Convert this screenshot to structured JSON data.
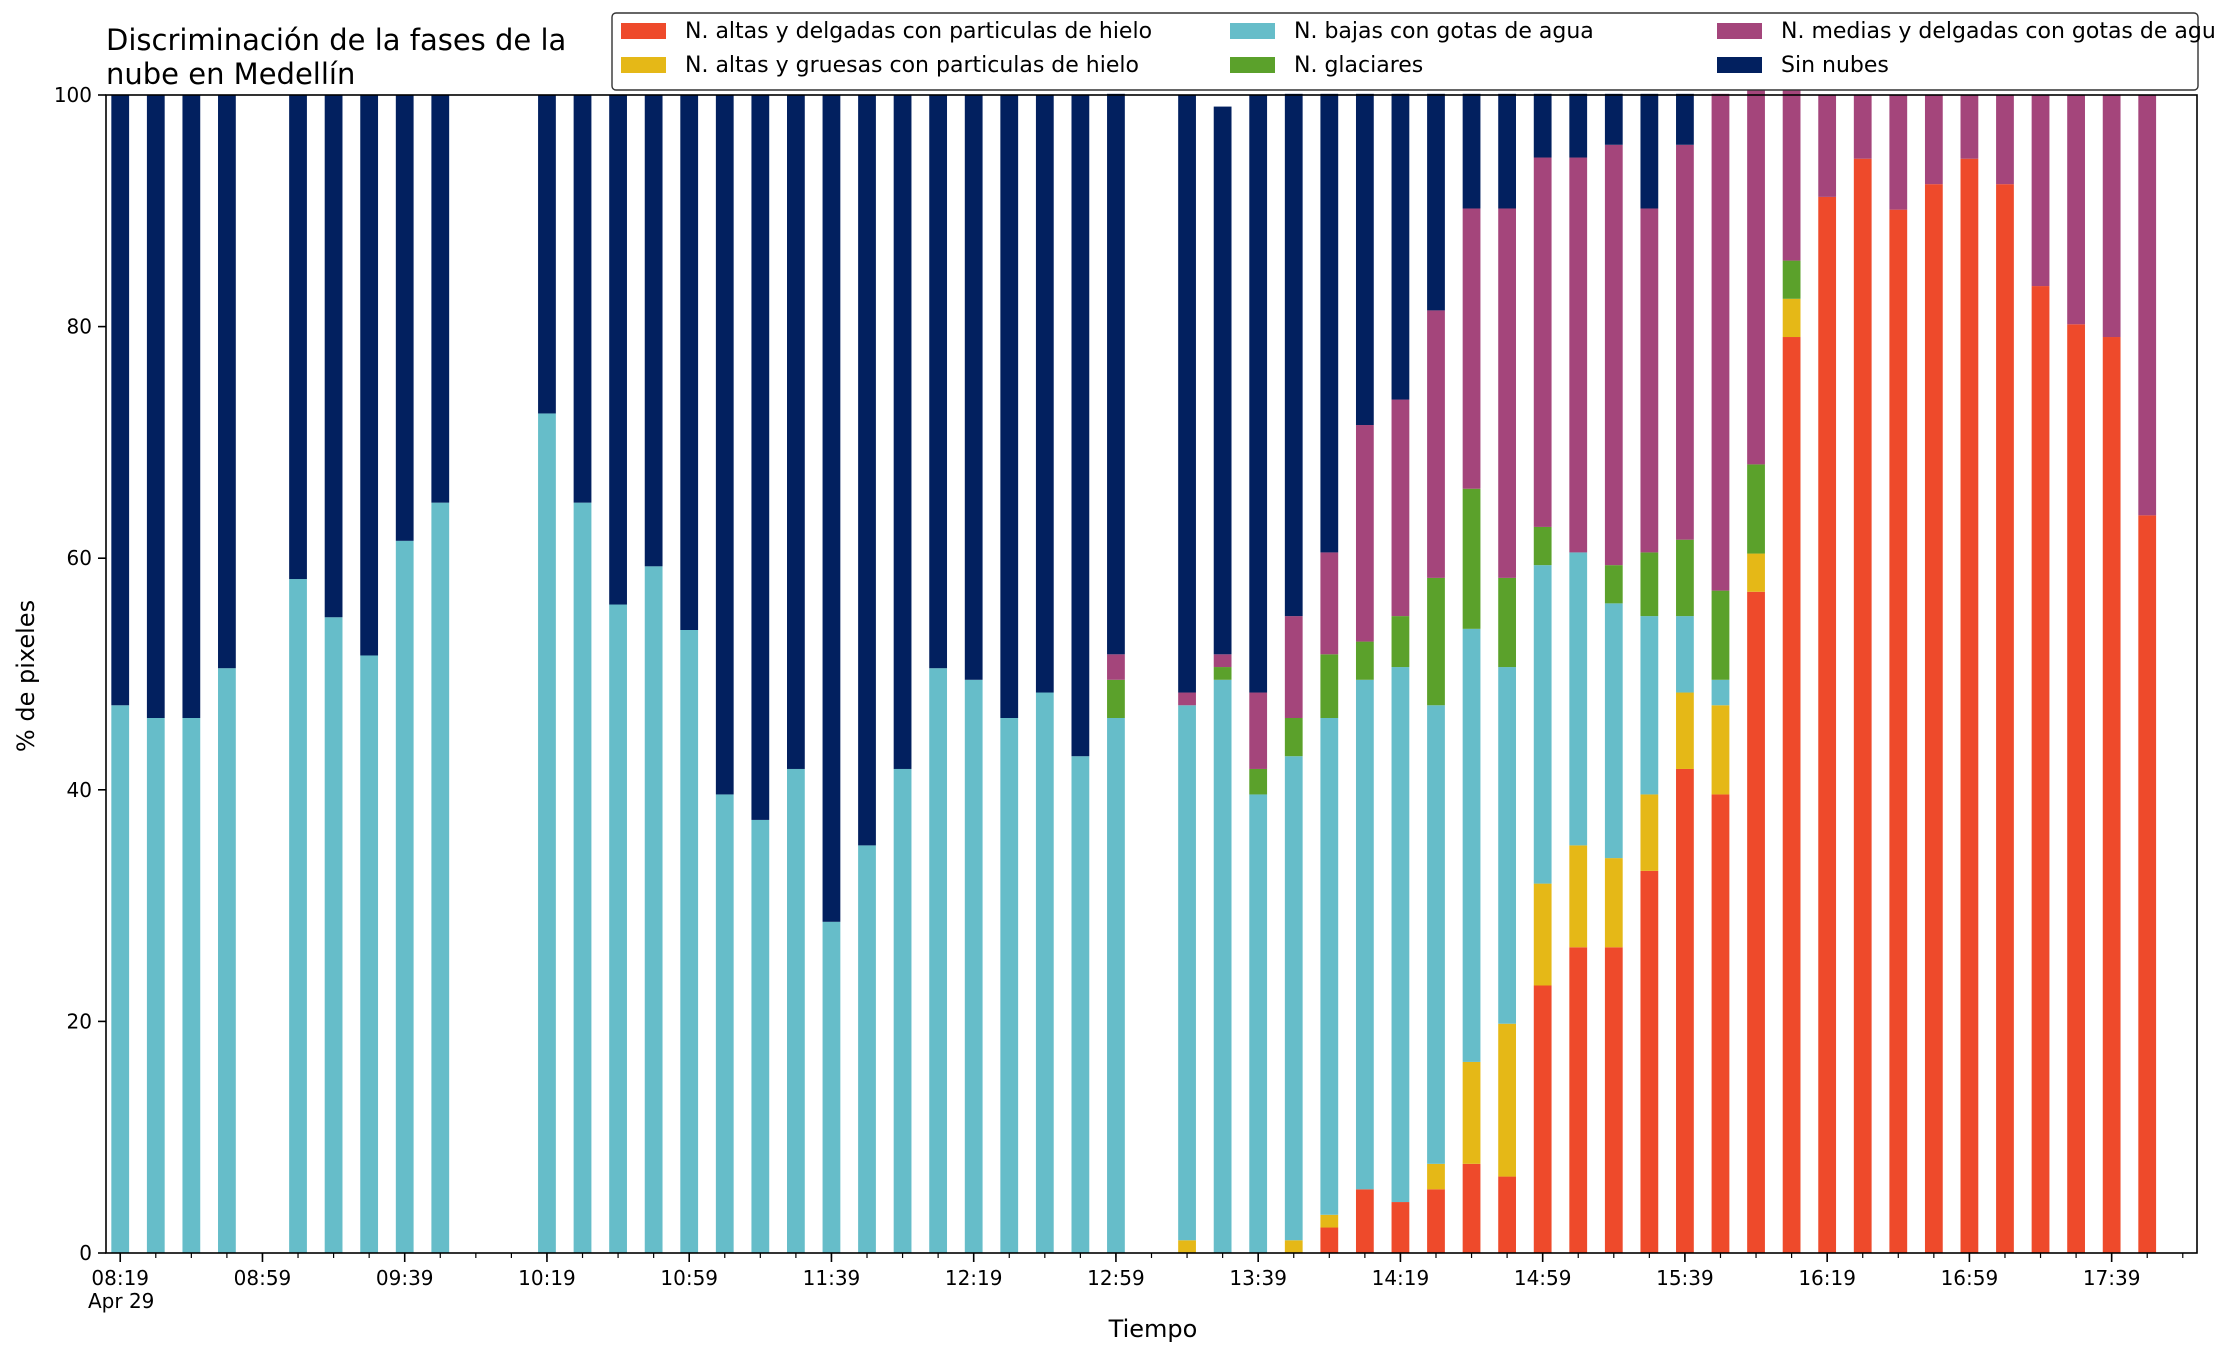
{
  "chart_data": {
    "type": "bar",
    "stacked": true,
    "title_lines": [
      "Discriminación de la fases de la",
      "nube en Medellín"
    ],
    "xlabel": "Tiempo",
    "ylabel": "% de pixeles",
    "ylim": [
      0,
      100
    ],
    "yticks": [
      0,
      20,
      40,
      60,
      80,
      100
    ],
    "xlim": [
      -0.4,
      58.4
    ],
    "x_major_ticks": [
      0,
      4,
      8,
      12,
      16,
      20,
      24,
      28,
      32,
      36,
      40,
      44,
      48,
      52,
      56
    ],
    "x_major_labels": [
      "08:19",
      "08:59",
      "09:39",
      "10:19",
      "10:59",
      "11:39",
      "12:19",
      "12:59",
      "13:39",
      "14:19",
      "14:59",
      "15:39",
      "16:19",
      "16:59",
      "17:39"
    ],
    "x_date_label": "Apr 29",
    "x_minor_ticks": [
      0,
      1,
      2,
      3,
      4,
      5,
      6,
      7,
      8,
      9,
      10,
      11,
      12,
      13,
      14,
      15,
      16,
      17,
      18,
      19,
      20,
      21,
      22,
      23,
      24,
      25,
      26,
      27,
      28,
      29,
      30,
      31,
      32,
      33,
      34,
      35,
      36,
      37,
      38,
      39,
      40,
      41,
      42,
      43,
      44,
      45,
      46,
      47,
      48,
      49,
      50,
      51,
      52,
      53,
      54,
      55,
      56,
      57,
      58
    ],
    "grid": false,
    "legend_position": "top",
    "bar_width": 0.5,
    "x": [
      0,
      1,
      2,
      3,
      5,
      6,
      7,
      8,
      9,
      12,
      13,
      14,
      15,
      16,
      17,
      18,
      19,
      20,
      21,
      22,
      23,
      24,
      25,
      26,
      27,
      28,
      30,
      31,
      32,
      33,
      34,
      35,
      36,
      37,
      38,
      39,
      40,
      41,
      42,
      43,
      44,
      45,
      46,
      47,
      48,
      49,
      50,
      51,
      52,
      53,
      54,
      55,
      56,
      57
    ],
    "series": [
      {
        "name": "N. altas y delgadas con particulas de hielo",
        "color": "#ee4a2b",
        "values": [
          0,
          0,
          0,
          0,
          0,
          0,
          0,
          0,
          0,
          0,
          0,
          0,
          0,
          0,
          0,
          0,
          0,
          0,
          0,
          0,
          0,
          0,
          0,
          0,
          0,
          0,
          0,
          0,
          0,
          0,
          2.2,
          5.5,
          4.4,
          5.5,
          7.7,
          6.6,
          23.1,
          26.4,
          26.4,
          33.0,
          41.8,
          39.6,
          57.1,
          79.1,
          91.2,
          94.5,
          90.1,
          92.3,
          94.5,
          92.3,
          83.5,
          80.2,
          79.1,
          63.7
        ]
      },
      {
        "name": "N. altas y gruesas con particulas de hielo",
        "color": "#e5b817",
        "values": [
          0,
          0,
          0,
          0,
          0,
          0,
          0,
          0,
          0,
          0,
          0,
          0,
          0,
          0,
          0,
          0,
          0,
          0,
          0,
          0,
          0,
          0,
          0,
          0,
          0,
          0,
          1.1,
          0,
          0,
          1.1,
          1.1,
          0,
          0,
          2.2,
          8.8,
          13.2,
          8.8,
          8.8,
          7.7,
          6.6,
          6.6,
          7.7,
          3.3,
          3.3,
          0,
          0,
          0,
          0,
          0,
          0,
          0,
          0,
          0,
          0
        ]
      },
      {
        "name": "N. bajas con gotas de agua",
        "color": "#66bdc9",
        "values": [
          47.3,
          46.2,
          46.2,
          50.5,
          58.2,
          54.9,
          51.6,
          61.5,
          64.8,
          72.5,
          64.8,
          56.0,
          59.3,
          53.8,
          39.6,
          37.4,
          41.8,
          28.6,
          35.2,
          41.8,
          50.5,
          49.5,
          46.2,
          48.4,
          42.9,
          46.2,
          46.2,
          49.5,
          39.6,
          41.8,
          42.9,
          44.0,
          46.2,
          39.6,
          37.4,
          30.8,
          27.5,
          25.3,
          22.0,
          15.4,
          6.6,
          2.2,
          0,
          0,
          0,
          0,
          0,
          0,
          0,
          0,
          0,
          0,
          0,
          0
        ]
      },
      {
        "name": "N. glaciares",
        "color": "#5ba12b",
        "values": [
          0,
          0,
          0,
          0,
          0,
          0,
          0,
          0,
          0,
          0,
          0,
          0,
          0,
          0,
          0,
          0,
          0,
          0,
          0,
          0,
          0,
          0,
          0,
          0,
          0,
          3.3,
          0,
          1.1,
          2.2,
          3.3,
          5.5,
          3.3,
          4.4,
          11.0,
          12.1,
          7.7,
          3.3,
          0,
          3.3,
          5.5,
          6.6,
          7.7,
          7.7,
          3.3,
          0,
          0,
          0,
          0,
          0,
          0,
          0,
          0,
          0,
          0
        ]
      },
      {
        "name": "N. medias y delgadas con gotas de agua",
        "color": "#a4457b",
        "values": [
          0,
          0,
          0,
          0,
          0,
          0,
          0,
          0,
          0,
          0,
          0,
          0,
          0,
          0,
          0,
          0,
          0,
          0,
          0,
          0,
          0,
          0,
          0,
          0,
          0,
          2.2,
          1.1,
          1.1,
          6.6,
          8.8,
          8.8,
          18.7,
          18.7,
          23.1,
          24.2,
          31.9,
          31.9,
          34.1,
          36.3,
          29.7,
          34.1,
          42.9,
          36.3,
          17.6,
          8.8,
          5.5,
          9.9,
          7.7,
          5.5,
          7.7,
          16.5,
          19.8,
          20.9,
          36.3
        ]
      },
      {
        "name": "Sin nubes",
        "color": "#02205f",
        "values": [
          52.7,
          53.8,
          53.8,
          49.5,
          41.8,
          45.1,
          48.4,
          38.5,
          35.2,
          27.5,
          35.2,
          44.0,
          40.7,
          46.2,
          60.4,
          62.6,
          58.2,
          71.4,
          64.8,
          58.2,
          49.5,
          50.5,
          53.8,
          51.6,
          57.1,
          48.4,
          51.6,
          47.3,
          51.6,
          45.1,
          39.6,
          28.6,
          26.4,
          18.7,
          9.9,
          9.9,
          5.5,
          5.5,
          4.4,
          9.9,
          4.4,
          0,
          0,
          0,
          0,
          0,
          0,
          0,
          0,
          0,
          0,
          0,
          0,
          0
        ]
      }
    ]
  }
}
